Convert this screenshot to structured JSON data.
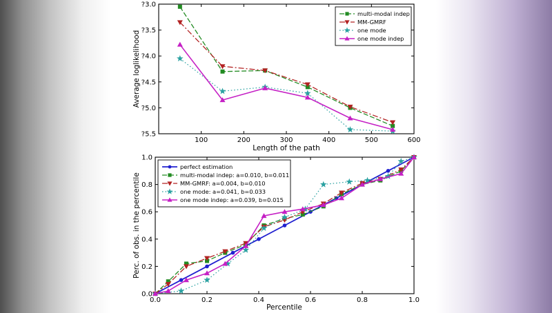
{
  "figure": {
    "panel_count": 2
  },
  "chart_data": [
    {
      "type": "line",
      "title": "",
      "xlabel": "Length of the path",
      "ylabel": "Average loglikelihood",
      "xlim": [
        0,
        600
      ],
      "ylim": [
        -5.5,
        -3.0
      ],
      "xticks": [
        100,
        200,
        300,
        400,
        500,
        600
      ],
      "xtick_labels": [
        "100",
        "200",
        "300",
        "400",
        "500",
        "600"
      ],
      "yticks": [
        -3.0,
        -3.5,
        -4.0,
        -4.5,
        -5.0,
        -5.5
      ],
      "ytick_labels": [
        "?3.0",
        "?3.5",
        "?4.0",
        "?4.5",
        "?5.0",
        "?5.5"
      ],
      "grid": false,
      "legend_position": "top-right",
      "series": [
        {
          "name": "multi-modal indep",
          "color": "#228b22",
          "linestyle": "dashed",
          "marker": "square",
          "width": 1.3,
          "x": [
            50,
            150,
            250,
            350,
            450,
            550
          ],
          "y": [
            -3.05,
            -4.3,
            -4.28,
            -4.6,
            -5.0,
            -5.35
          ]
        },
        {
          "name": "MM-GMRF",
          "color": "#b22222",
          "linestyle": "dashdot",
          "marker": "triangle-down",
          "width": 1.3,
          "x": [
            50,
            150,
            250,
            350,
            450,
            550
          ],
          "y": [
            -3.35,
            -4.2,
            -4.28,
            -4.55,
            -4.98,
            -5.28
          ]
        },
        {
          "name": "one mode",
          "color": "#2aa1a1",
          "linestyle": "dotted",
          "marker": "star",
          "width": 1.2,
          "x": [
            50,
            150,
            250,
            350,
            450,
            550
          ],
          "y": [
            -4.05,
            -4.68,
            -4.6,
            -4.72,
            -5.42,
            -5.45
          ]
        },
        {
          "name": "one mode indep",
          "color": "#c520c5",
          "linestyle": "solid",
          "marker": "triangle-up",
          "width": 1.6,
          "x": [
            50,
            150,
            250,
            350,
            450,
            550
          ],
          "y": [
            -3.78,
            -4.85,
            -4.62,
            -4.8,
            -5.2,
            -5.42
          ]
        }
      ]
    },
    {
      "type": "line",
      "title": "",
      "xlabel": "Percentile",
      "ylabel": "Perc. of obs. in the percentile",
      "xlim": [
        0,
        1
      ],
      "ylim": [
        0,
        1
      ],
      "xticks": [
        0,
        0.2,
        0.4,
        0.6,
        0.8,
        1.0
      ],
      "xtick_labels": [
        "0.0",
        "0.2",
        "0.4",
        "0.6",
        "0.8",
        "1.0"
      ],
      "yticks": [
        0,
        0.2,
        0.4,
        0.6,
        0.8,
        1.0
      ],
      "ytick_labels": [
        "0.0",
        "0.2",
        "0.4",
        "0.6",
        "0.8",
        "1.0"
      ],
      "grid": false,
      "legend_position": "top-left",
      "series": [
        {
          "name": "perfect estimation",
          "color": "#2020d0",
          "linestyle": "solid",
          "marker": "circle",
          "width": 1.8,
          "x": [
            0,
            0.1,
            0.2,
            0.3,
            0.4,
            0.5,
            0.6,
            0.7,
            0.8,
            0.9,
            1.0
          ],
          "y": [
            0,
            0.1,
            0.2,
            0.3,
            0.4,
            0.5,
            0.6,
            0.7,
            0.8,
            0.9,
            1.0
          ]
        },
        {
          "name": "multi-modal indep: a=0.010, b=0.011",
          "color": "#228b22",
          "linestyle": "dashed",
          "marker": "square",
          "width": 1.3,
          "x": [
            0,
            0.05,
            0.12,
            0.2,
            0.27,
            0.35,
            0.42,
            0.5,
            0.57,
            0.65,
            0.72,
            0.8,
            0.87,
            0.95,
            1.0
          ],
          "y": [
            0,
            0.09,
            0.22,
            0.24,
            0.3,
            0.36,
            0.5,
            0.55,
            0.58,
            0.64,
            0.73,
            0.8,
            0.83,
            0.9,
            1.0
          ]
        },
        {
          "name": "MM-GMRF: a=0.004, b=0.010",
          "color": "#b22222",
          "linestyle": "dashdot",
          "marker": "triangle-down",
          "width": 1.3,
          "x": [
            0,
            0.05,
            0.12,
            0.2,
            0.27,
            0.35,
            0.42,
            0.5,
            0.57,
            0.65,
            0.72,
            0.8,
            0.87,
            0.95,
            1.0
          ],
          "y": [
            0,
            0.07,
            0.2,
            0.26,
            0.31,
            0.37,
            0.49,
            0.54,
            0.6,
            0.66,
            0.74,
            0.81,
            0.84,
            0.91,
            1.0
          ]
        },
        {
          "name": "one mode: a=0.041, b=0.033",
          "color": "#2aa1a1",
          "linestyle": "dotted",
          "marker": "star",
          "width": 1.2,
          "x": [
            0,
            0.1,
            0.2,
            0.28,
            0.35,
            0.42,
            0.5,
            0.58,
            0.65,
            0.75,
            0.82,
            0.9,
            0.95,
            1.0
          ],
          "y": [
            0,
            0.02,
            0.1,
            0.22,
            0.32,
            0.48,
            0.56,
            0.62,
            0.8,
            0.82,
            0.83,
            0.86,
            0.97,
            1.0
          ]
        },
        {
          "name": "one mode indep: a=0.039, b=0.015",
          "color": "#c520c5",
          "linestyle": "solid",
          "marker": "triangle-up",
          "width": 1.6,
          "x": [
            0,
            0.05,
            0.12,
            0.2,
            0.27,
            0.35,
            0.42,
            0.5,
            0.57,
            0.65,
            0.72,
            0.8,
            0.87,
            0.95,
            1.0
          ],
          "y": [
            0,
            0.02,
            0.1,
            0.15,
            0.22,
            0.35,
            0.57,
            0.6,
            0.62,
            0.65,
            0.7,
            0.8,
            0.84,
            0.88,
            1.0
          ]
        }
      ]
    }
  ]
}
